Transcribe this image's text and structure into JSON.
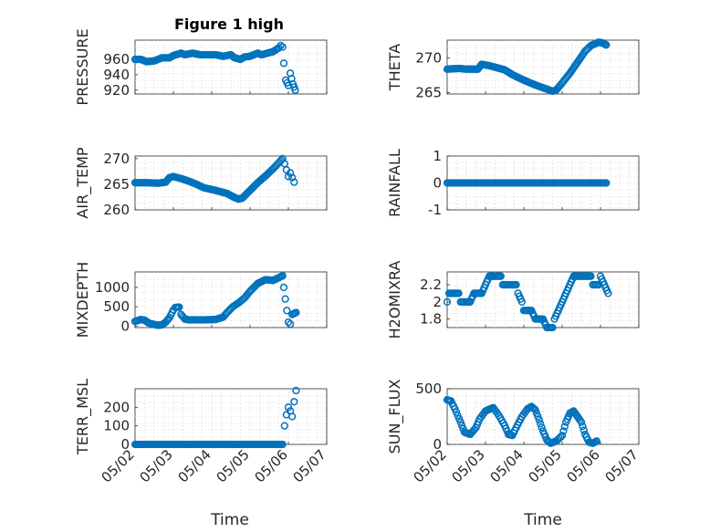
{
  "figure": {
    "title": "Figure 1 high",
    "marker_color": "#0072BD",
    "xlabel": "Time"
  },
  "chart_data": [
    {
      "type": "scatter",
      "ylabel": "PRESSURE",
      "title": "Figure 1 high",
      "xlim": [
        0,
        5
      ],
      "ylim": [
        915,
        985
      ],
      "yticks": [
        920,
        940,
        960
      ],
      "x_tick_labels": [],
      "keypoints": [
        [
          0,
          960
        ],
        [
          0.15,
          960
        ],
        [
          0.3,
          957
        ],
        [
          0.5,
          958
        ],
        [
          0.7,
          962
        ],
        [
          0.9,
          962
        ],
        [
          1.0,
          965
        ],
        [
          1.2,
          968
        ],
        [
          1.3,
          966
        ],
        [
          1.5,
          968
        ],
        [
          1.7,
          966
        ],
        [
          1.9,
          966
        ],
        [
          2.1,
          966
        ],
        [
          2.3,
          964
        ],
        [
          2.5,
          966
        ],
        [
          2.6,
          962
        ],
        [
          2.75,
          960
        ],
        [
          2.85,
          963
        ],
        [
          3.0,
          964
        ],
        [
          3.2,
          968
        ],
        [
          3.3,
          966
        ],
        [
          3.45,
          968
        ],
        [
          3.6,
          970
        ],
        [
          3.75,
          975
        ],
        [
          3.8,
          978
        ],
        [
          3.85,
          976
        ],
        [
          3.88,
          955
        ],
        [
          3.93,
          933
        ],
        [
          4.0,
          926
        ],
        [
          4.05,
          942
        ],
        [
          4.12,
          928
        ],
        [
          4.18,
          920
        ]
      ]
    },
    {
      "type": "scatter",
      "ylabel": "THETA",
      "xlim": [
        0,
        5
      ],
      "ylim": [
        264.8,
        272.6
      ],
      "yticks": [
        265,
        270
      ],
      "x_tick_labels": [],
      "keypoints": [
        [
          0,
          268.4
        ],
        [
          0.3,
          268.5
        ],
        [
          0.5,
          268.4
        ],
        [
          0.8,
          268.4
        ],
        [
          0.9,
          269.1
        ],
        [
          1.1,
          268.9
        ],
        [
          1.3,
          268.6
        ],
        [
          1.5,
          268.3
        ],
        [
          1.7,
          267.6
        ],
        [
          2.0,
          266.8
        ],
        [
          2.3,
          266.1
        ],
        [
          2.55,
          265.6
        ],
        [
          2.75,
          265.2
        ],
        [
          2.85,
          265.4
        ],
        [
          3.0,
          266.4
        ],
        [
          3.2,
          267.8
        ],
        [
          3.4,
          269.4
        ],
        [
          3.6,
          271.0
        ],
        [
          3.75,
          271.8
        ],
        [
          3.95,
          272.3
        ],
        [
          4.05,
          272.2
        ],
        [
          4.15,
          271.9
        ]
      ]
    },
    {
      "type": "scatter",
      "ylabel": "AIR_TEMP",
      "xlim": [
        0,
        5
      ],
      "ylim": [
        260,
        270.5
      ],
      "yticks": [
        260,
        265,
        270
      ],
      "x_tick_labels": [],
      "keypoints": [
        [
          0,
          265.3
        ],
        [
          0.3,
          265.3
        ],
        [
          0.6,
          265.2
        ],
        [
          0.8,
          265.4
        ],
        [
          0.9,
          266.3
        ],
        [
          1.0,
          266.5
        ],
        [
          1.2,
          266.1
        ],
        [
          1.4,
          265.6
        ],
        [
          1.6,
          265.0
        ],
        [
          1.8,
          264.3
        ],
        [
          2.1,
          263.8
        ],
        [
          2.4,
          263.2
        ],
        [
          2.6,
          262.4
        ],
        [
          2.7,
          262.1
        ],
        [
          2.8,
          262.3
        ],
        [
          3.0,
          263.8
        ],
        [
          3.2,
          265.3
        ],
        [
          3.4,
          266.6
        ],
        [
          3.6,
          268.0
        ],
        [
          3.75,
          269.2
        ],
        [
          3.85,
          270.0
        ],
        [
          3.9,
          269.0
        ],
        [
          3.95,
          267.8
        ],
        [
          4.0,
          266.5
        ],
        [
          4.05,
          267.2
        ],
        [
          4.1,
          266.3
        ],
        [
          4.15,
          265.4
        ]
      ]
    },
    {
      "type": "scatter",
      "ylabel": "RAINFALL",
      "xlim": [
        0,
        5
      ],
      "ylim": [
        -1,
        1
      ],
      "yticks": [
        -1,
        0,
        1
      ],
      "x_tick_labels": [],
      "keypoints": [
        [
          0,
          0
        ],
        [
          4.15,
          0
        ]
      ]
    },
    {
      "type": "scatter",
      "ylabel": "MIXDEPTH",
      "xlim": [
        0,
        5
      ],
      "ylim": [
        -40,
        1400
      ],
      "yticks": [
        0,
        500,
        1000
      ],
      "x_tick_labels": [],
      "keypoints": [
        [
          0,
          120
        ],
        [
          0.15,
          170
        ],
        [
          0.25,
          150
        ],
        [
          0.35,
          80
        ],
        [
          0.5,
          40
        ],
        [
          0.6,
          20
        ],
        [
          0.7,
          30
        ],
        [
          0.8,
          100
        ],
        [
          0.9,
          220
        ],
        [
          1.0,
          420
        ],
        [
          1.05,
          480
        ],
        [
          1.15,
          490
        ],
        [
          1.2,
          300
        ],
        [
          1.3,
          180
        ],
        [
          1.4,
          160
        ],
        [
          1.5,
          160
        ],
        [
          1.8,
          160
        ],
        [
          2.1,
          170
        ],
        [
          2.3,
          230
        ],
        [
          2.4,
          350
        ],
        [
          2.55,
          500
        ],
        [
          2.7,
          600
        ],
        [
          2.85,
          720
        ],
        [
          3.0,
          900
        ],
        [
          3.2,
          1100
        ],
        [
          3.4,
          1200
        ],
        [
          3.6,
          1180
        ],
        [
          3.75,
          1250
        ],
        [
          3.85,
          1300
        ],
        [
          3.88,
          1000
        ],
        [
          3.92,
          700
        ],
        [
          3.96,
          400
        ],
        [
          4.0,
          100
        ],
        [
          4.05,
          50
        ],
        [
          4.1,
          300
        ],
        [
          4.2,
          350
        ]
      ]
    },
    {
      "type": "scatter",
      "ylabel": "H2OMIXRA",
      "xlim": [
        0,
        5
      ],
      "ylim": [
        1.7,
        2.35
      ],
      "yticks": [
        1.8,
        2.0,
        2.2
      ],
      "x_tick_labels": [],
      "keypoints": [
        [
          0,
          2.0
        ],
        [
          0.05,
          2.1
        ],
        [
          0.3,
          2.1
        ],
        [
          0.35,
          2.0
        ],
        [
          0.6,
          2.0
        ],
        [
          0.7,
          2.1
        ],
        [
          0.9,
          2.1
        ],
        [
          1.0,
          2.2
        ],
        [
          1.1,
          2.3
        ],
        [
          1.4,
          2.3
        ],
        [
          1.45,
          2.2
        ],
        [
          1.8,
          2.2
        ],
        [
          1.85,
          2.1
        ],
        [
          1.95,
          2.0
        ],
        [
          2.0,
          1.9
        ],
        [
          2.2,
          1.9
        ],
        [
          2.3,
          1.8
        ],
        [
          2.5,
          1.8
        ],
        [
          2.6,
          1.7
        ],
        [
          2.75,
          1.7
        ],
        [
          2.8,
          1.8
        ],
        [
          2.9,
          1.9
        ],
        [
          3.0,
          2.0
        ],
        [
          3.1,
          2.1
        ],
        [
          3.2,
          2.2
        ],
        [
          3.3,
          2.3
        ],
        [
          3.75,
          2.3
        ],
        [
          3.8,
          2.2
        ],
        [
          3.95,
          2.2
        ],
        [
          4.0,
          2.3
        ],
        [
          4.1,
          2.2
        ],
        [
          4.2,
          2.1
        ]
      ]
    },
    {
      "type": "scatter",
      "ylabel": "TERR_MSL",
      "xlim": [
        0,
        5
      ],
      "ylim": [
        0,
        300
      ],
      "yticks": [
        0,
        100,
        200
      ],
      "x_tick_labels": [
        "05/02",
        "05/03",
        "05/04",
        "05/05",
        "05/06",
        "05/07"
      ],
      "keypoints": [
        [
          0,
          0
        ],
        [
          3.85,
          0
        ],
        [
          3.9,
          100
        ],
        [
          3.95,
          160
        ],
        [
          4.0,
          200
        ],
        [
          4.05,
          180
        ],
        [
          4.1,
          150
        ],
        [
          4.15,
          230
        ],
        [
          4.2,
          290
        ]
      ]
    },
    {
      "type": "scatter",
      "ylabel": "SUN_FLUX",
      "xlim": [
        0,
        5
      ],
      "ylim": [
        0,
        500
      ],
      "yticks": [
        0,
        500
      ],
      "x_tick_labels": [
        "05/02",
        "05/03",
        "05/04",
        "05/05",
        "05/06",
        "05/07"
      ],
      "keypoints": [
        [
          0,
          400
        ],
        [
          0.1,
          390
        ],
        [
          0.2,
          320
        ],
        [
          0.35,
          200
        ],
        [
          0.45,
          110
        ],
        [
          0.6,
          90
        ],
        [
          0.75,
          150
        ],
        [
          0.85,
          230
        ],
        [
          1.0,
          300
        ],
        [
          1.2,
          330
        ],
        [
          1.35,
          260
        ],
        [
          1.5,
          170
        ],
        [
          1.6,
          90
        ],
        [
          1.7,
          80
        ],
        [
          1.8,
          150
        ],
        [
          1.95,
          250
        ],
        [
          2.1,
          320
        ],
        [
          2.2,
          340
        ],
        [
          2.3,
          310
        ],
        [
          2.4,
          220
        ],
        [
          2.5,
          120
        ],
        [
          2.6,
          40
        ],
        [
          2.7,
          10
        ],
        [
          2.85,
          30
        ],
        [
          3.0,
          80
        ],
        [
          3.1,
          200
        ],
        [
          3.2,
          280
        ],
        [
          3.3,
          300
        ],
        [
          3.4,
          250
        ],
        [
          3.5,
          200
        ],
        [
          3.6,
          90
        ],
        [
          3.7,
          20
        ],
        [
          3.8,
          10
        ],
        [
          3.9,
          30
        ]
      ]
    }
  ]
}
